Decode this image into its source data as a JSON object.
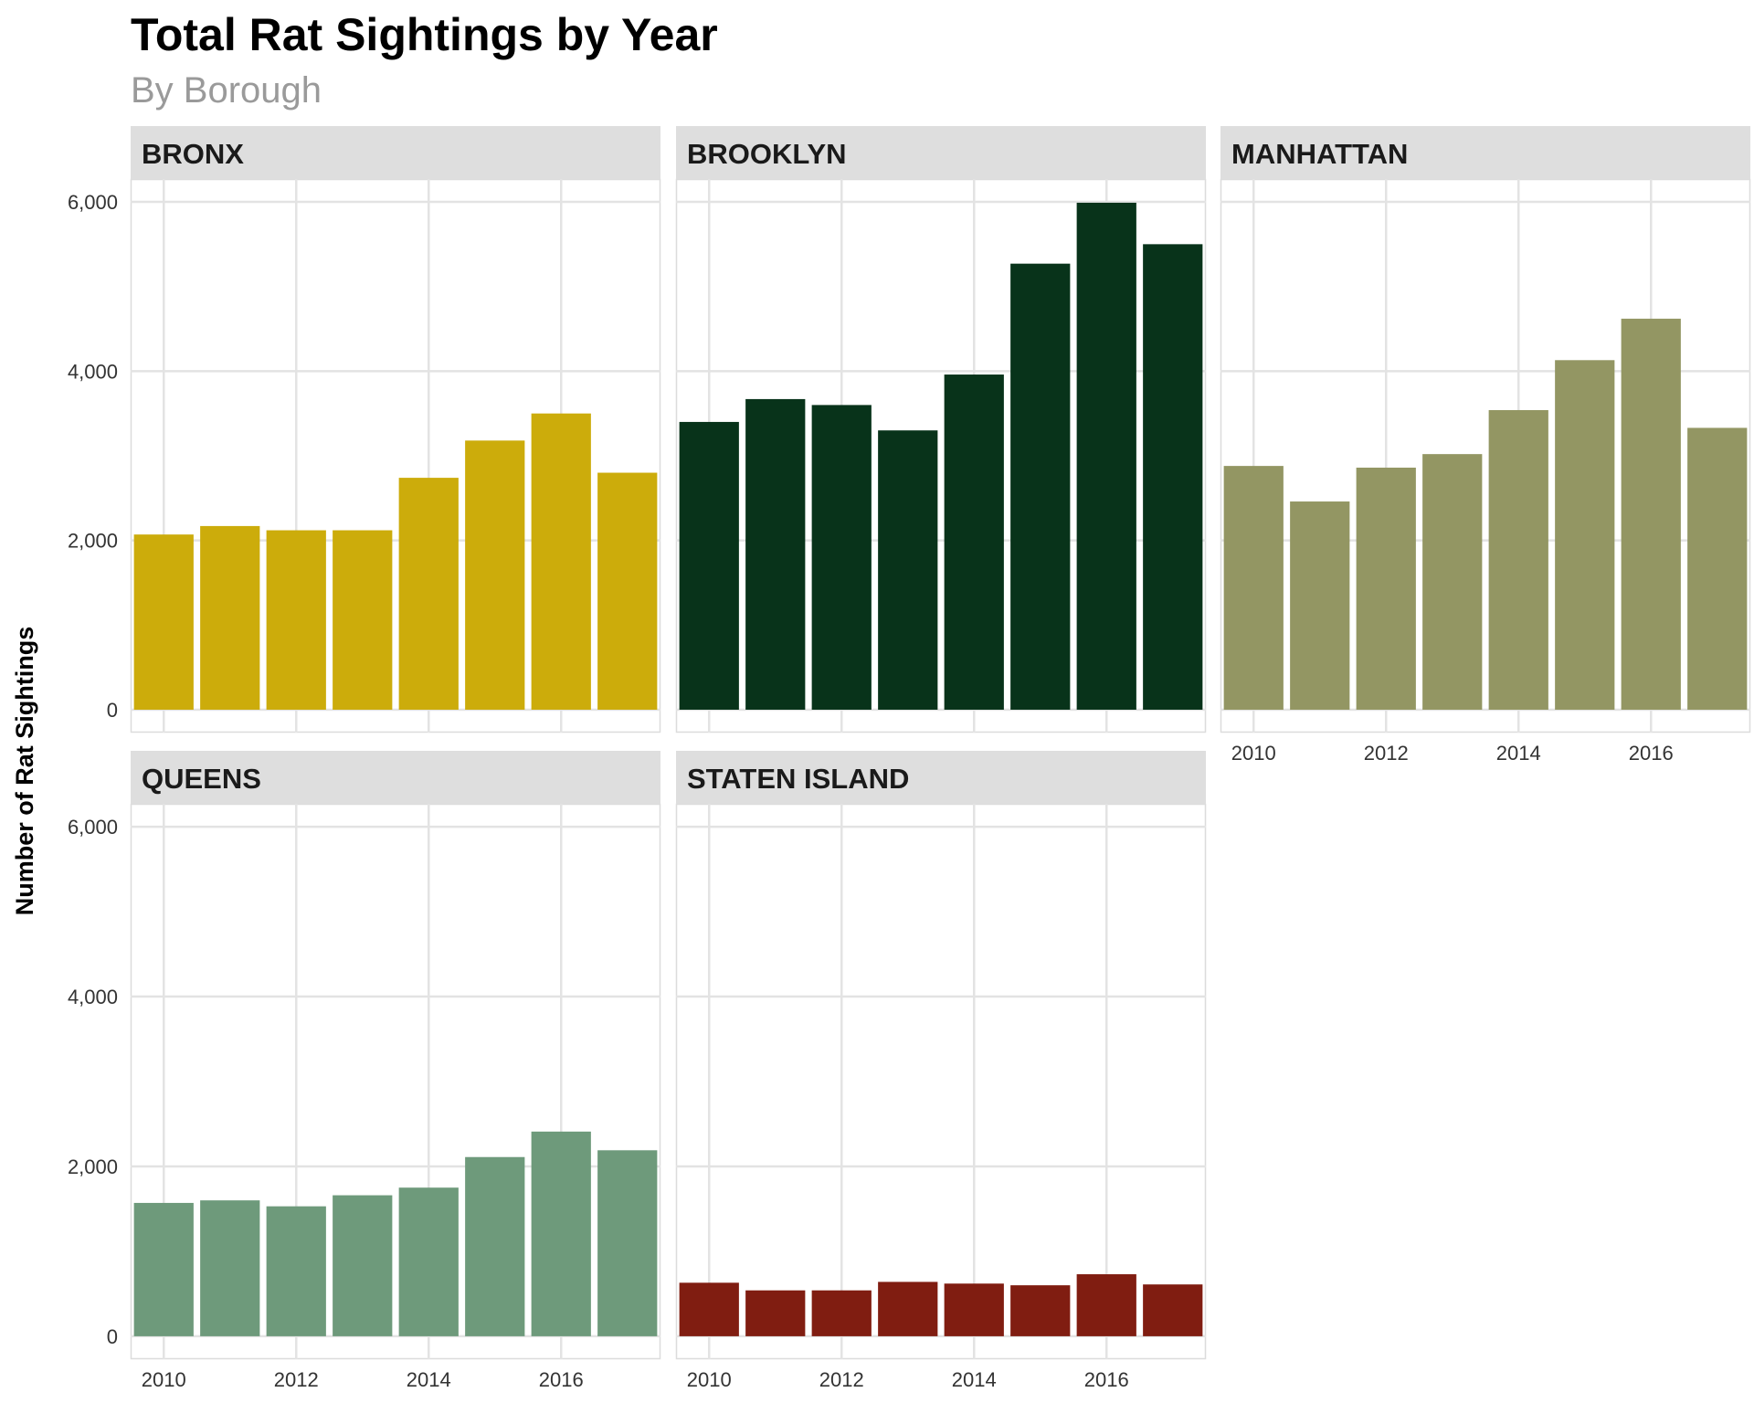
{
  "chart_data": {
    "type": "bar",
    "title": "Total Rat Sightings by Year",
    "subtitle": "By Borough",
    "xlabel": "",
    "ylabel": "Number of Rat Sightings",
    "x_ticks": [
      2010,
      2012,
      2014,
      2016
    ],
    "x_range": [
      2009.5,
      2017.5
    ],
    "y_ticks": [
      0,
      2000,
      4000,
      6000
    ],
    "y_tick_labels": [
      "0",
      "2,000",
      "4,000",
      "6,000"
    ],
    "ylim": [
      -270,
      6270
    ],
    "grid": true,
    "legend": "none",
    "categories": [
      2010,
      2011,
      2012,
      2013,
      2014,
      2015,
      2016,
      2017
    ],
    "series": [
      {
        "name": "BRONX",
        "color": "#CCAC0B",
        "values": [
          2070,
          2170,
          2120,
          2120,
          2740,
          3180,
          3500,
          2800
        ]
      },
      {
        "name": "BROOKLYN",
        "color": "#08331A",
        "values": [
          3400,
          3670,
          3600,
          3300,
          3960,
          5270,
          5990,
          5500
        ]
      },
      {
        "name": "MANHATTAN",
        "color": "#939663",
        "values": [
          2880,
          2460,
          2860,
          3020,
          3540,
          4130,
          4620,
          3330
        ]
      },
      {
        "name": "QUEENS",
        "color": "#6E9A7B",
        "values": [
          1570,
          1600,
          1530,
          1660,
          1750,
          2110,
          2410,
          2190
        ]
      },
      {
        "name": "STATEN ISLAND",
        "color": "#801D11",
        "values": [
          630,
          540,
          540,
          640,
          620,
          600,
          730,
          610
        ]
      }
    ]
  }
}
